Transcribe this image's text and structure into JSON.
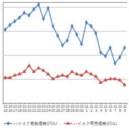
{
  "chart_data": {
    "type": "line",
    "categories": [
      "10\n15",
      "10\n16",
      "10\n17",
      "10\n18",
      "10\n19",
      "10\n20",
      "10\n21",
      "10\n22",
      "10\n23",
      "10\n24",
      "10\n25",
      "10\n26",
      "10\n27",
      "10\n28",
      "10\n29",
      "10\n30",
      "10\n31",
      "11\n1",
      "11\n2",
      "11\n3",
      "11\n4",
      "11\n5",
      "11\n6",
      "11\n7",
      "11\n8",
      "11\n9"
    ],
    "series": [
      {
        "name": "ハイオク看板価格(円/L)",
        "color": "#4a7ebb",
        "marker": "diamond",
        "values": [
          166.1,
          166.5,
          166.8,
          167.1,
          167.5,
          167.3,
          167.8,
          168.2,
          167.0,
          167.9,
          166.4,
          165.6,
          164.8,
          165.2,
          166.4,
          165.7,
          164.9,
          166.7,
          166.4,
          165.8,
          164.2,
          163.9,
          164.6,
          163.3,
          163.8,
          164.6
        ]
      },
      {
        "name": "ハイオク実売価格(円/L)",
        "color": "#be4b48",
        "marker": "triangle",
        "values": [
          162.1,
          162.1,
          162.3,
          162.4,
          162.6,
          163.1,
          162.6,
          162.9,
          162.7,
          162.4,
          162.0,
          162.2,
          162.3,
          162.2,
          162.6,
          162.4,
          162.3,
          162.6,
          162.4,
          162.2,
          161.7,
          161.9,
          162.0,
          162.0,
          161.9,
          161.5
        ]
      }
    ],
    "ylim": [
      160,
      168.4
    ],
    "yticks": [
      160,
      162,
      164,
      166,
      168
    ],
    "grid": true,
    "tick_labels": "x",
    "legend": "bottom"
  }
}
